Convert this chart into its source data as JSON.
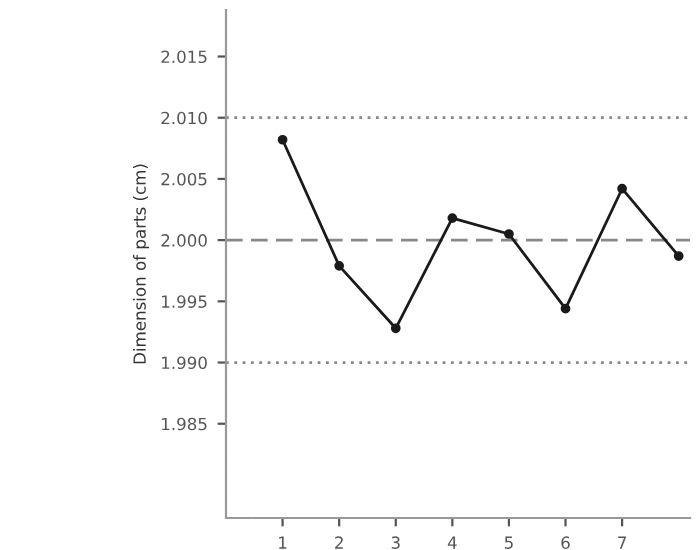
{
  "chart_data": {
    "type": "line",
    "ylabel": "Dimension of parts (cm)",
    "x": [
      1,
      2,
      3,
      4,
      5,
      6,
      7,
      8
    ],
    "series": [
      {
        "color": "#1a1a1a",
        "values": [
          2.0082,
          1.9979,
          1.9928,
          2.0018,
          2.0005,
          1.9944,
          2.0042,
          1.9987
        ]
      }
    ],
    "xlim": [
      0,
      8.2
    ],
    "xticks": [
      1,
      2,
      3,
      4,
      5,
      6,
      7
    ],
    "ylim": [
      1.9773,
      2.0188
    ],
    "yticks": [
      {
        "value": 1.985,
        "label": "1.985"
      },
      {
        "value": 1.99,
        "label": "1.990"
      },
      {
        "value": 1.995,
        "label": "1.995"
      },
      {
        "value": 2.0,
        "label": "2.000"
      },
      {
        "value": 2.005,
        "label": "2.005"
      },
      {
        "value": 2.01,
        "label": "2.010"
      },
      {
        "value": 2.015,
        "label": "2.015"
      }
    ],
    "ref_lines": [
      {
        "axis": "y",
        "value": 2.01,
        "color": "#888888",
        "line_style": "dotted"
      },
      {
        "axis": "y",
        "value": 2.0,
        "color": "#888888",
        "line_style": "dashed"
      },
      {
        "axis": "y",
        "value": 1.99,
        "color": "#888888",
        "line_style": "dotted"
      }
    ],
    "marker": "circle",
    "line_style": "solid",
    "grid": false,
    "legend": false
  }
}
